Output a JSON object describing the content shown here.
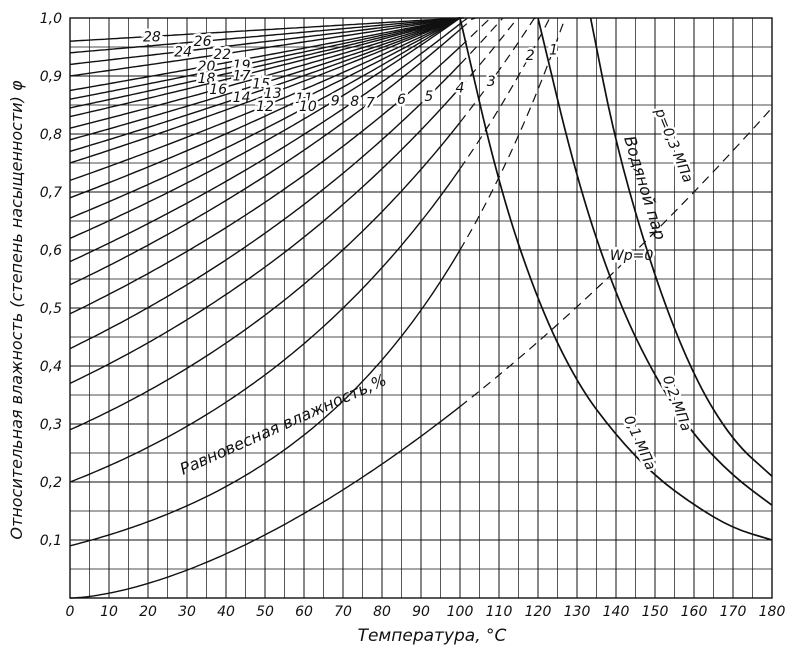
{
  "chart_data": {
    "type": "line",
    "xlabel": "Температура, °С",
    "ylabel": "Относительная влажность (степень насыщенности) φ",
    "xlim": [
      0,
      180
    ],
    "ylim": [
      0,
      1.0
    ],
    "grid": true,
    "x_ticks": [
      "0",
      "10",
      "20",
      "30",
      "40",
      "50",
      "60",
      "70",
      "80",
      "90",
      "100",
      "110",
      "120",
      "130",
      "140",
      "150",
      "160",
      "170",
      "180"
    ],
    "y_ticks": [
      "0,1",
      "0,2",
      "0,3",
      "0,4",
      "0,5",
      "0,6",
      "0,7",
      "0,8",
      "0,9",
      "1,0"
    ],
    "family_label": "Равновесная влажность,%",
    "equilibrium_moisture_curves": [
      {
        "name": "28",
        "label": "28",
        "y_at_0": 0.96,
        "y_at_100": 1.0
      },
      {
        "name": "26",
        "label": "26",
        "y_at_0": 0.94,
        "y_at_100": 1.0
      },
      {
        "name": "24",
        "label": "24",
        "y_at_0": 0.92,
        "y_at_100": 1.0
      },
      {
        "name": "22",
        "label": "22",
        "y_at_0": 0.9,
        "y_at_100": 1.0
      },
      {
        "name": "20",
        "label": "20",
        "y_at_0": 0.875,
        "y_at_100": 1.0
      },
      {
        "name": "19",
        "label": "19",
        "y_at_0": 0.86,
        "y_at_100": 1.0
      },
      {
        "name": "18",
        "label": "18",
        "y_at_0": 0.845,
        "y_at_100": 1.0
      },
      {
        "name": "17",
        "label": "17",
        "y_at_0": 0.83,
        "y_at_100": 1.0
      },
      {
        "name": "16",
        "label": "16",
        "y_at_0": 0.81,
        "y_at_100": 1.0
      },
      {
        "name": "15",
        "label": "15",
        "y_at_0": 0.79,
        "y_at_100": 1.0
      },
      {
        "name": "14",
        "label": "14",
        "y_at_0": 0.77,
        "y_at_100": 1.0
      },
      {
        "name": "13",
        "label": "13",
        "y_at_0": 0.75,
        "y_at_100": 1.0
      },
      {
        "name": "12",
        "label": "12",
        "y_at_0": 0.72,
        "y_at_100": 1.0
      },
      {
        "name": "11",
        "label": "11",
        "y_at_0": 0.69,
        "y_at_100": 1.0
      },
      {
        "name": "10",
        "label": "10",
        "y_at_0": 0.655,
        "y_at_100": 1.0
      },
      {
        "name": "9",
        "label": "9",
        "y_at_0": 0.62,
        "y_at_100": 1.0
      },
      {
        "name": "8",
        "label": "8",
        "y_at_0": 0.58,
        "y_at_100": 0.99
      },
      {
        "name": "7",
        "label": "7",
        "y_at_0": 0.54,
        "y_at_100": 0.98
      },
      {
        "name": "6",
        "label": "6",
        "y_at_0": 0.49,
        "y_at_100": 0.95
      },
      {
        "name": "5",
        "label": "5",
        "y_at_0": 0.43,
        "y_at_100": 0.92
      },
      {
        "name": "4",
        "label": "4",
        "y_at_0": 0.37,
        "y_at_100": 0.88
      },
      {
        "name": "3",
        "label": "3",
        "y_at_0": 0.29,
        "y_at_100": 0.82
      },
      {
        "name": "2",
        "label": "2",
        "y_at_0": 0.2,
        "y_at_100": 0.74
      },
      {
        "name": "1",
        "label": "1",
        "y_at_0": 0.09,
        "y_at_100": 0.6
      },
      {
        "name": "Wp=0",
        "label": "Wр=0",
        "y_at_0": 0.0,
        "y_at_100": 0.33
      }
    ],
    "water_vapor_title": "Водяной пар",
    "water_vapor_curves": [
      {
        "name": "p=0,3 МПа",
        "label": "р=0,3 МПа",
        "points": [
          [
            133.5,
            1.0
          ],
          [
            140,
            0.78
          ],
          [
            150,
            0.55
          ],
          [
            160,
            0.38
          ],
          [
            170,
            0.27
          ],
          [
            180,
            0.21
          ]
        ]
      },
      {
        "name": "0,2 МПа",
        "label": "0,2 МПа",
        "points": [
          [
            120,
            1.0
          ],
          [
            130,
            0.72
          ],
          [
            140,
            0.52
          ],
          [
            150,
            0.38
          ],
          [
            160,
            0.28
          ],
          [
            170,
            0.21
          ],
          [
            180,
            0.16
          ]
        ]
      },
      {
        "name": "0,1 МПа",
        "label": "0,1 МПа",
        "points": [
          [
            100,
            1.0
          ],
          [
            110,
            0.71
          ],
          [
            120,
            0.51
          ],
          [
            130,
            0.37
          ],
          [
            140,
            0.28
          ],
          [
            150,
            0.21
          ],
          [
            160,
            0.16
          ],
          [
            170,
            0.12
          ],
          [
            180,
            0.1
          ]
        ]
      }
    ]
  }
}
